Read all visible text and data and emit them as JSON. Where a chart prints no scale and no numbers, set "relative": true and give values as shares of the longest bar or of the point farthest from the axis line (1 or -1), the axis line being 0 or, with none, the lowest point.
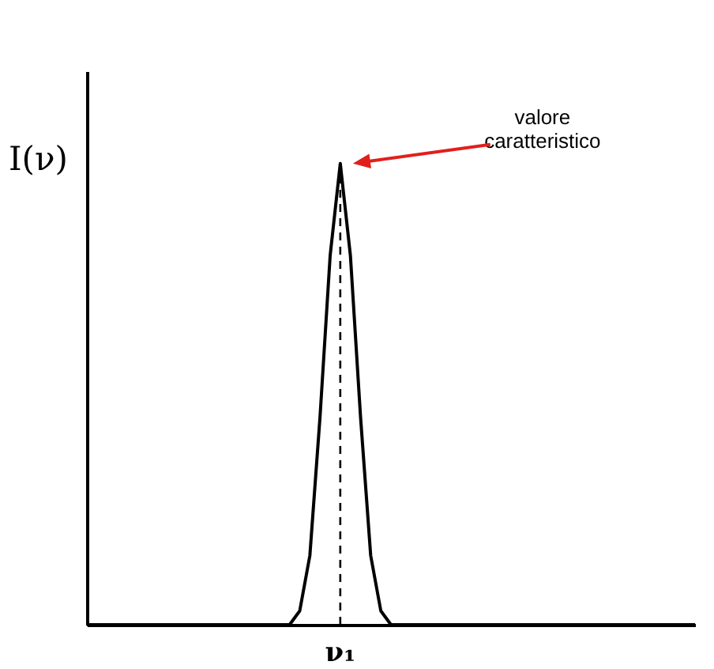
{
  "chart_data": {
    "type": "line",
    "relative": true,
    "ylabel": "I(ν)",
    "line_style": "solid",
    "categories": [
      null,
      null,
      null,
      null,
      null,
      null,
      null,
      null,
      null,
      null,
      null,
      null,
      null,
      null,
      null,
      null,
      null,
      null,
      null,
      null,
      null,
      null,
      null,
      null,
      null,
      null,
      null,
      null,
      null,
      null,
      null,
      null,
      null,
      null,
      null,
      null,
      null,
      null,
      null,
      null,
      null,
      null,
      null,
      null,
      null,
      null,
      null,
      null,
      null,
      null,
      null,
      null,
      null,
      null,
      null,
      null,
      null,
      null,
      null,
      null,
      null
    ],
    "series": [
      {
        "color": "#000000",
        "values": [
          0,
          0,
          0,
          0,
          0,
          0,
          0,
          0,
          0,
          0,
          0,
          0,
          0,
          0,
          0,
          0,
          0,
          0,
          0,
          0,
          0,
          0.03,
          0.15,
          0.45,
          0.8,
          1,
          0.8,
          0.45,
          0.15,
          0.03,
          0,
          0,
          0,
          0,
          0,
          0,
          0,
          0,
          0,
          0,
          0,
          0,
          0,
          0,
          0,
          0,
          0,
          0,
          0,
          0,
          0,
          0,
          0,
          0,
          0,
          0,
          0,
          0,
          0,
          0,
          0
        ]
      }
    ],
    "annotations": [
      "valore\ncaratteristico",
      "ν₁"
    ]
  }
}
